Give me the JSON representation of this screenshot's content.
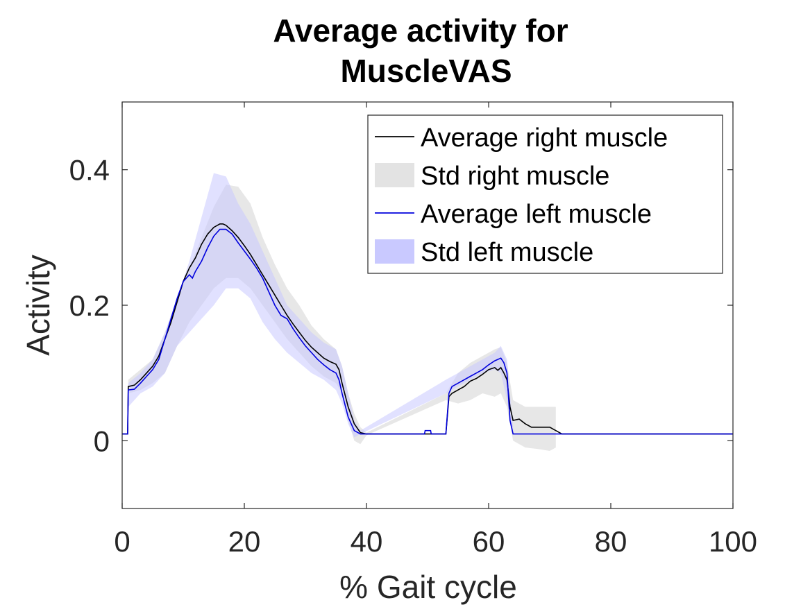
{
  "chart_data": {
    "type": "line",
    "title_lines": [
      "Average activity for",
      "MuscleVAS"
    ],
    "xlabel": "% Gait cycle",
    "ylabel": "Activity",
    "xlim": [
      0,
      100
    ],
    "ylim": [
      -0.1,
      0.5
    ],
    "xticks": [
      0,
      20,
      40,
      60,
      80,
      100
    ],
    "xtick_labels": [
      "0",
      "20",
      "40",
      "60",
      "80",
      "100"
    ],
    "yticks": [
      0,
      0.2,
      0.4
    ],
    "ytick_labels": [
      "0",
      "0.2",
      "0.4"
    ],
    "grid": false,
    "legend_position": "top-right",
    "colors": {
      "right_line": "#000000",
      "right_band": "#e3e3e3",
      "left_line": "#0000dd",
      "left_band": "#c9c9ff"
    },
    "legend": [
      {
        "label": "Average right muscle",
        "kind": "line",
        "color_key": "right_line"
      },
      {
        "label": "Std right muscle",
        "kind": "patch",
        "color_key": "right_band"
      },
      {
        "label": "Average left muscle",
        "kind": "line",
        "color_key": "left_line"
      },
      {
        "label": "Std left muscle",
        "kind": "patch",
        "color_key": "left_band"
      }
    ],
    "series": [
      {
        "name": "Average right muscle",
        "x": [
          0,
          0.9,
          1.0,
          2.0,
          3.0,
          4.0,
          5.0,
          6.0,
          7.0,
          8.0,
          9.0,
          10.0,
          11.0,
          12.0,
          13.0,
          14.0,
          15.0,
          16.0,
          16.5,
          17.0,
          18.0,
          19.0,
          20.0,
          21.0,
          22.0,
          23.0,
          24.0,
          25.0,
          26.0,
          27.0,
          28.0,
          29.0,
          30.0,
          31.0,
          32.0,
          33.0,
          34.0,
          35.0,
          35.5,
          36.0,
          37.0,
          38.0,
          39.0,
          40.0,
          41.0,
          53.0,
          53.5,
          54.0,
          55.0,
          56.0,
          57.0,
          58.0,
          59.0,
          60.0,
          61.0,
          61.5,
          62.0,
          62.5,
          63.0,
          63.5,
          64.0,
          65.0,
          66.0,
          67.0,
          68.0,
          70.0,
          71.0,
          72.0,
          100
        ],
        "values": [
          0.01,
          0.01,
          0.08,
          0.082,
          0.09,
          0.1,
          0.11,
          0.125,
          0.15,
          0.175,
          0.205,
          0.235,
          0.255,
          0.27,
          0.29,
          0.305,
          0.315,
          0.32,
          0.32,
          0.318,
          0.31,
          0.3,
          0.288,
          0.275,
          0.26,
          0.245,
          0.23,
          0.215,
          0.2,
          0.185,
          0.172,
          0.16,
          0.148,
          0.138,
          0.13,
          0.122,
          0.117,
          0.113,
          0.105,
          0.085,
          0.05,
          0.025,
          0.012,
          0.01,
          0.01,
          0.01,
          0.065,
          0.07,
          0.075,
          0.08,
          0.088,
          0.092,
          0.098,
          0.105,
          0.108,
          0.104,
          0.108,
          0.1,
          0.09,
          0.05,
          0.03,
          0.032,
          0.025,
          0.02,
          0.02,
          0.02,
          0.015,
          0.01,
          0.01
        ]
      },
      {
        "name": "Std right muscle",
        "x": [
          1.0,
          3.0,
          5.0,
          7.0,
          9.0,
          11.0,
          13.0,
          15.0,
          17.0,
          19.0,
          21.0,
          23.0,
          25.0,
          27.0,
          29.0,
          31.0,
          33.0,
          35.0,
          36.0,
          37.0,
          38.0,
          39.0,
          40.0,
          53.0,
          55.0,
          57.0,
          59.0,
          61.0,
          62.0,
          63.0,
          64.0,
          66.0,
          68.0,
          70.0,
          71.0
        ],
        "upper": [
          0.09,
          0.105,
          0.12,
          0.16,
          0.21,
          0.255,
          0.3,
          0.345,
          0.378,
          0.375,
          0.35,
          0.3,
          0.26,
          0.225,
          0.2,
          0.17,
          0.15,
          0.135,
          0.11,
          0.07,
          0.04,
          0.02,
          0.012,
          0.07,
          0.1,
          0.115,
          0.125,
          0.135,
          0.138,
          0.115,
          0.06,
          0.05,
          0.05,
          0.05,
          0.05
        ],
        "lower": [
          0.07,
          0.075,
          0.085,
          0.1,
          0.14,
          0.175,
          0.2,
          0.225,
          0.24,
          0.24,
          0.225,
          0.2,
          0.175,
          0.15,
          0.13,
          0.11,
          0.095,
          0.085,
          0.07,
          0.03,
          0.0,
          -0.005,
          0.008,
          0.06,
          0.055,
          0.06,
          0.07,
          0.065,
          0.07,
          0.05,
          0.0,
          -0.01,
          -0.012,
          -0.015,
          -0.01
        ]
      },
      {
        "name": "Average left muscle",
        "x": [
          0,
          0.9,
          1.0,
          2.0,
          3.0,
          4.0,
          5.0,
          6.0,
          7.0,
          8.0,
          9.0,
          10.0,
          11.0,
          11.5,
          12.0,
          13.0,
          14.0,
          15.0,
          16.0,
          17.0,
          18.0,
          19.0,
          20.0,
          21.0,
          22.0,
          23.0,
          24.0,
          25.0,
          26.0,
          27.0,
          28.0,
          29.0,
          30.0,
          31.0,
          32.0,
          33.0,
          34.0,
          35.0,
          35.5,
          36.0,
          37.0,
          38.0,
          39.0,
          40.0,
          49.5,
          49.6,
          50.0,
          50.5,
          50.6,
          53.0,
          53.5,
          54.0,
          55.0,
          56.0,
          57.0,
          58.0,
          59.0,
          60.0,
          61.0,
          62.0,
          62.5,
          63.0,
          63.5,
          64.0,
          100
        ],
        "values": [
          0.01,
          0.01,
          0.075,
          0.076,
          0.085,
          0.095,
          0.105,
          0.12,
          0.15,
          0.18,
          0.21,
          0.235,
          0.245,
          0.24,
          0.25,
          0.265,
          0.285,
          0.302,
          0.312,
          0.312,
          0.305,
          0.292,
          0.28,
          0.268,
          0.255,
          0.24,
          0.22,
          0.2,
          0.185,
          0.18,
          0.165,
          0.152,
          0.14,
          0.13,
          0.12,
          0.112,
          0.105,
          0.1,
          0.09,
          0.07,
          0.035,
          0.015,
          0.01,
          0.01,
          0.01,
          0.015,
          0.015,
          0.015,
          0.01,
          0.01,
          0.07,
          0.08,
          0.085,
          0.09,
          0.095,
          0.1,
          0.105,
          0.112,
          0.118,
          0.122,
          0.115,
          0.1,
          0.03,
          0.01,
          0.01
        ]
      },
      {
        "name": "Std left muscle",
        "x": [
          1.0,
          3.0,
          5.0,
          7.0,
          9.0,
          11.0,
          13.0,
          15.0,
          17.0,
          19.0,
          21.0,
          23.0,
          25.0,
          27.0,
          29.0,
          31.0,
          33.0,
          35.0,
          36.0,
          37.0,
          38.0,
          39.0,
          53.0,
          55.0,
          57.0,
          59.0,
          61.0,
          62.0,
          63.0,
          64.0
        ],
        "upper": [
          0.085,
          0.1,
          0.12,
          0.16,
          0.21,
          0.265,
          0.33,
          0.395,
          0.39,
          0.35,
          0.32,
          0.28,
          0.24,
          0.2,
          0.18,
          0.16,
          0.145,
          0.135,
          0.11,
          0.07,
          0.03,
          0.015,
          0.09,
          0.1,
          0.11,
          0.12,
          0.13,
          0.14,
          0.12,
          0.02
        ],
        "lower": [
          0.05,
          0.07,
          0.08,
          0.1,
          0.14,
          0.16,
          0.18,
          0.2,
          0.225,
          0.225,
          0.21,
          0.175,
          0.15,
          0.13,
          0.115,
          0.1,
          0.09,
          0.075,
          0.055,
          0.025,
          0.005,
          0.01,
          0.07,
          0.08,
          0.09,
          0.1,
          0.105,
          0.1,
          0.06,
          0.01
        ]
      }
    ]
  }
}
